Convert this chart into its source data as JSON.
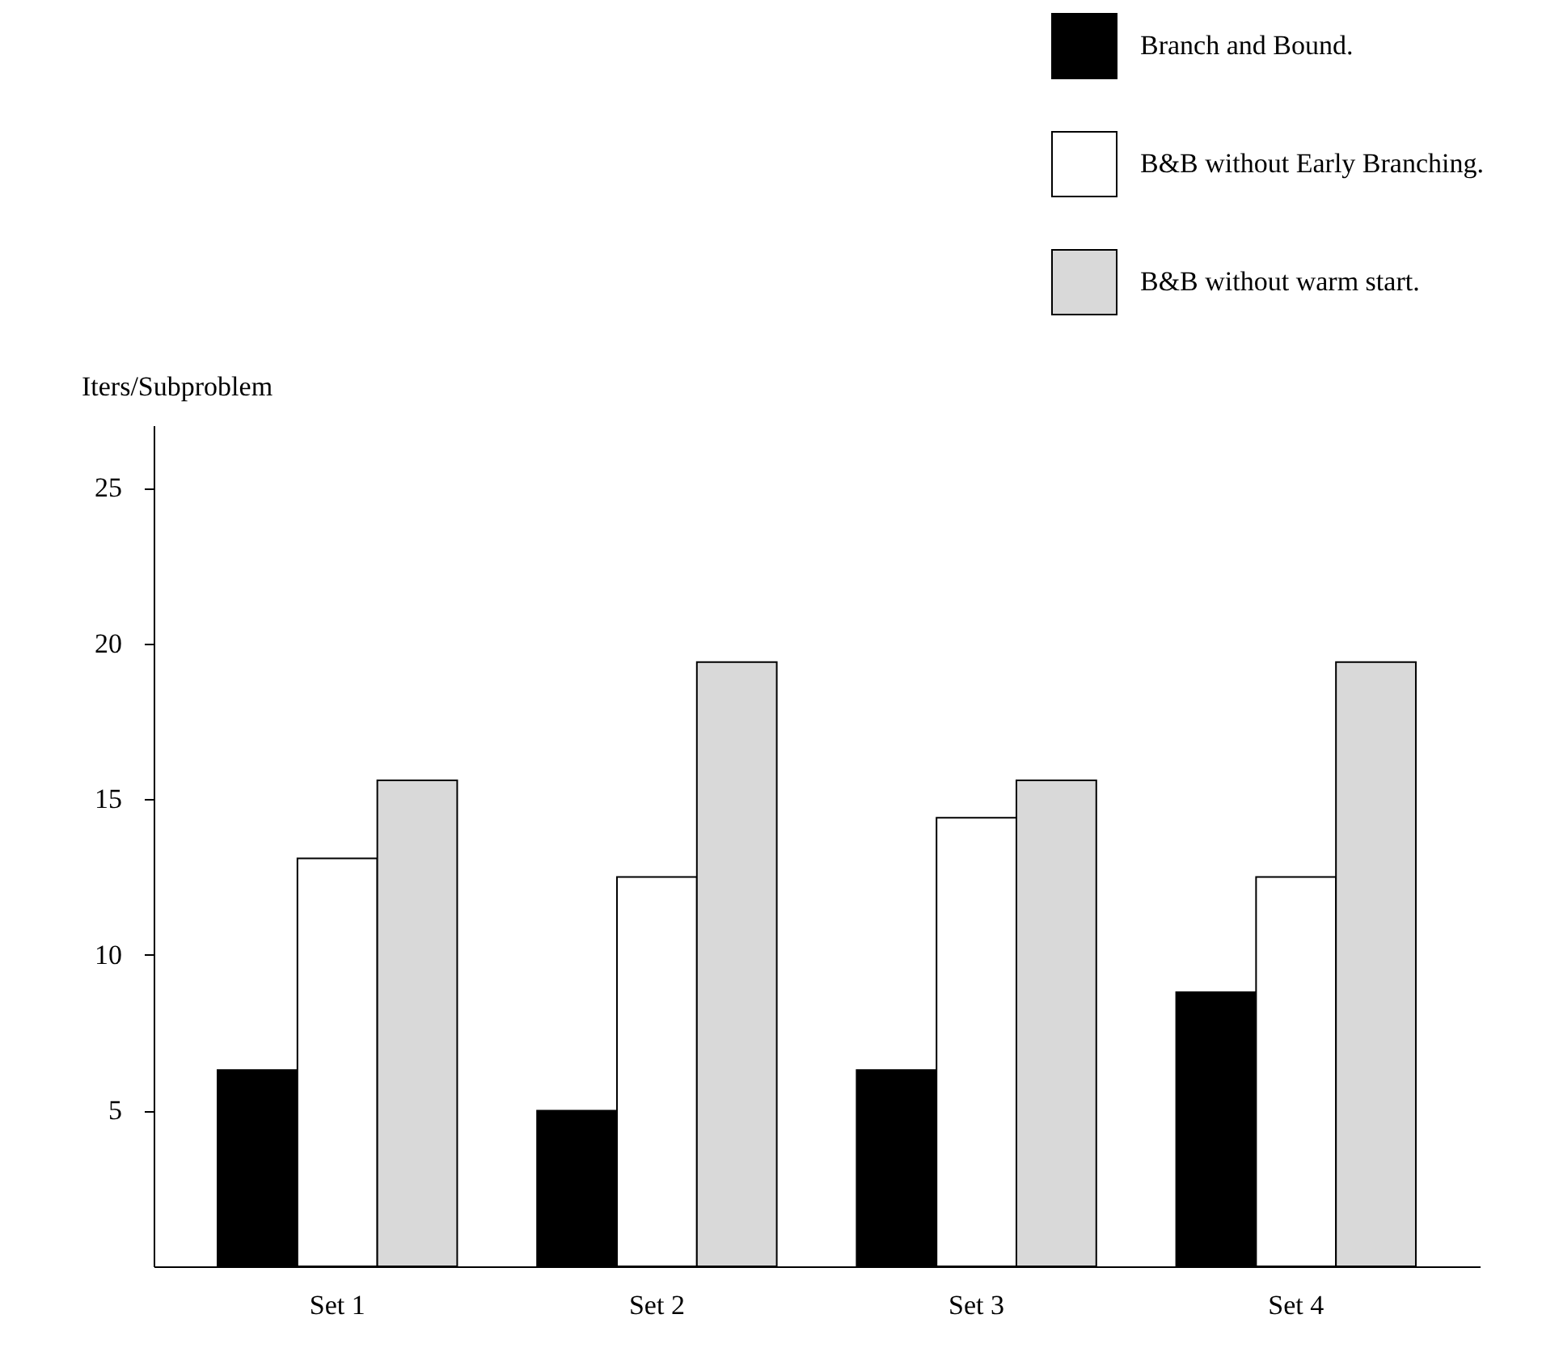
{
  "chart_data": {
    "type": "bar",
    "ylabel": "Iters/Subproblem",
    "categories": [
      "Set  1",
      "Set  2",
      "Set  3",
      "Set  4"
    ],
    "series": [
      {
        "name": "Branch and Bound.",
        "color": "#000000",
        "values": [
          6.3,
          5.0,
          6.3,
          8.8
        ]
      },
      {
        "name": "B&B without Early Branching.",
        "color": "#ffffff",
        "values": [
          13.1,
          12.5,
          14.4,
          12.5
        ]
      },
      {
        "name": "B&B without warm start.",
        "color": "#d9d9d9",
        "values": [
          15.6,
          19.4,
          15.6,
          19.4
        ]
      }
    ],
    "ylim": [
      0,
      27
    ],
    "yticks": [
      5,
      10,
      15,
      20,
      25
    ],
    "legend": "top right"
  }
}
